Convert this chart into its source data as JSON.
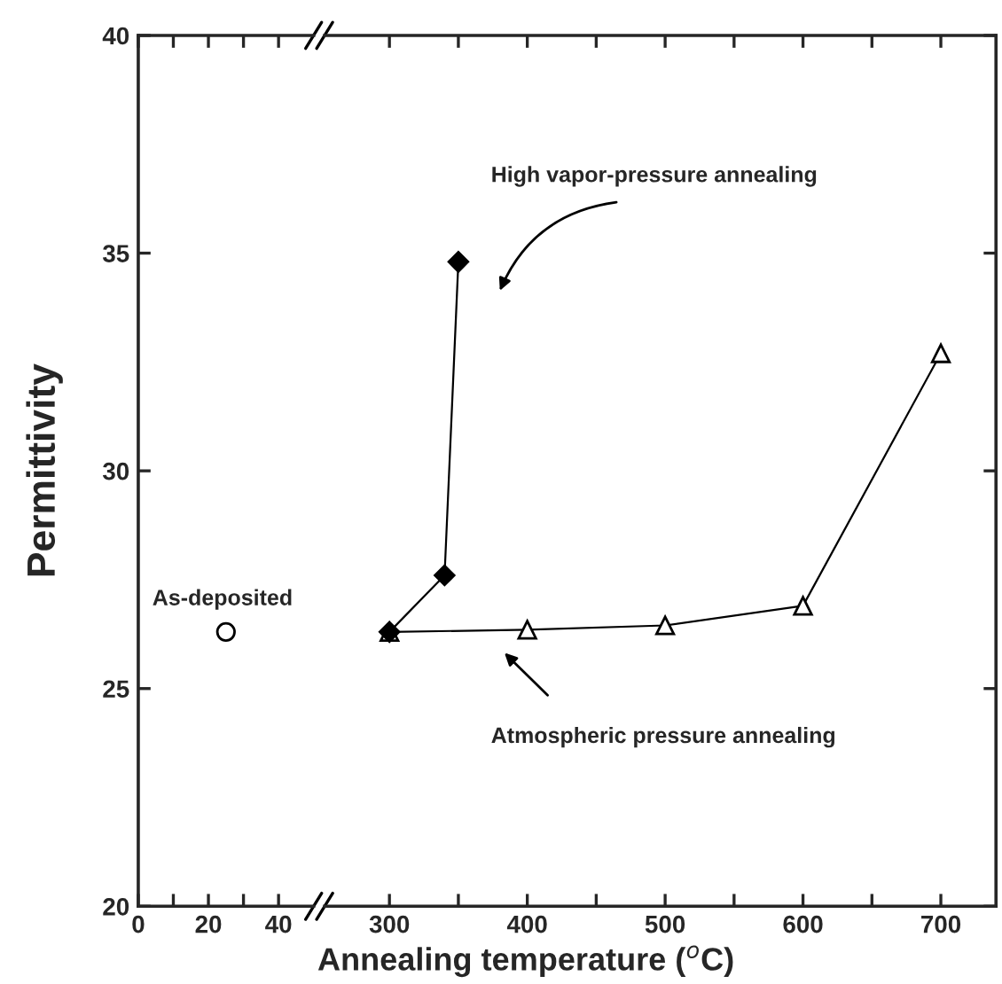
{
  "chart_data": [
    {
      "type": "scatter",
      "ylabel": "Permittivity",
      "xlim": [
        0,
        50
      ],
      "xticks": [
        0,
        {
          "value": 10,
          "label": null
        },
        20,
        {
          "value": 30,
          "label": null
        },
        40
      ],
      "ylim": [
        20,
        40
      ],
      "yticks": [
        20,
        25,
        30,
        35,
        40
      ],
      "marker": "circle",
      "series": [
        {
          "color": "#000000",
          "x": [
            25
          ],
          "values": [
            26.3
          ]
        }
      ],
      "annotations": [
        "As-deposited"
      ]
    },
    {
      "type": "line",
      "xlabel": "Annealing temperature ($^{o}$C)",
      "xlim": [
        253,
        740
      ],
      "xticks": [
        300,
        {
          "value": 350,
          "label": null
        },
        400,
        {
          "value": 450,
          "label": null
        },
        500,
        {
          "value": 550,
          "label": null
        },
        600,
        {
          "value": 650,
          "label": null
        },
        700
      ],
      "ylim": [
        20,
        40
      ],
      "yticks": [
        20,
        25,
        30,
        35,
        40
      ],
      "tick_labels": "x",
      "series": [
        {
          "color": "#000000",
          "marker": "diamond",
          "x": [
            300,
            340,
            350
          ],
          "values": [
            26.3,
            27.6,
            34.8
          ]
        },
        {
          "color": "#000000",
          "marker": "triangle",
          "x": [
            300,
            400,
            500,
            600,
            700
          ],
          "values": [
            26.3,
            26.35,
            26.45,
            26.9,
            32.7
          ]
        }
      ],
      "annotations": [
        "High vapor-pressure annealing",
        "Atmospheric pressure annealing"
      ]
    }
  ]
}
